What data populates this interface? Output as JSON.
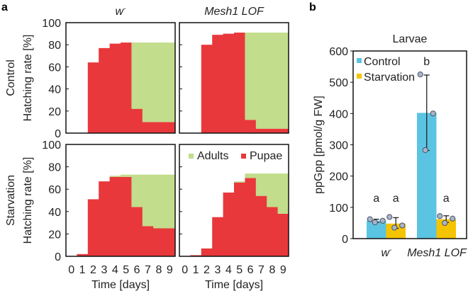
{
  "panel_labels": {
    "a": "a",
    "b": "b"
  },
  "colors": {
    "pupae": "#e8383b",
    "adults": "#c2dd8b",
    "control": "#5bc4e3",
    "starvation": "#f5c400",
    "point": "#a9b4c8"
  },
  "chart_data": [
    {
      "type": "bar",
      "subtype": "stacked-step",
      "panel": "a",
      "column_titles": [
        "w-",
        "Mesh1 LOF"
      ],
      "row_titles": [
        "Control",
        "Starvation"
      ],
      "ylabel": "Hatching rate [%]",
      "xlabel": "Time [days]",
      "ylim": [
        0,
        100
      ],
      "yticks": [
        0,
        20,
        40,
        60,
        80,
        100
      ],
      "categories": [
        "0",
        "1",
        "2",
        "3",
        "4",
        "5",
        "6",
        "7",
        "8",
        "9"
      ],
      "legend": {
        "position": "top-right",
        "entries": [
          "Adults",
          "Pupae"
        ]
      },
      "subplots": [
        {
          "row": "Control",
          "genotype": "w-",
          "series": [
            {
              "name": "Pupae",
              "values": [
                0,
                0,
                64,
                77,
                81,
                82,
                22,
                10,
                10,
                10
              ]
            },
            {
              "name": "Adults",
              "values": [
                0,
                0,
                0,
                0,
                0,
                0,
                60,
                72,
                72,
                72
              ]
            }
          ]
        },
        {
          "row": "Control",
          "genotype": "Mesh1 LOF",
          "series": [
            {
              "name": "Pupae",
              "values": [
                0,
                0,
                80,
                89,
                90,
                91,
                12,
                4,
                4,
                4
              ]
            },
            {
              "name": "Adults",
              "values": [
                0,
                0,
                0,
                0,
                0,
                0,
                79,
                87,
                87,
                87
              ]
            }
          ]
        },
        {
          "row": "Starvation",
          "genotype": "w-",
          "series": [
            {
              "name": "Pupae",
              "values": [
                0,
                2,
                51,
                67,
                71,
                71,
                44,
                27,
                25,
                25
              ]
            },
            {
              "name": "Adults",
              "values": [
                0,
                0,
                0,
                0,
                1,
                2,
                29,
                46,
                48,
                48
              ]
            }
          ]
        },
        {
          "row": "Starvation",
          "genotype": "Mesh1 LOF",
          "series": [
            {
              "name": "Pupae",
              "values": [
                0,
                1,
                7,
                35,
                57,
                66,
                70,
                54,
                44,
                38
              ]
            },
            {
              "name": "Adults",
              "values": [
                0,
                0,
                0,
                0,
                0,
                1,
                4,
                20,
                30,
                36
              ]
            }
          ]
        }
      ]
    },
    {
      "type": "bar",
      "panel": "b",
      "title": "Larvae",
      "ylabel": "ppGpp [pmol/g FW]",
      "ylim": [
        0,
        600
      ],
      "yticks": [
        0,
        100,
        200,
        300,
        400,
        500,
        600
      ],
      "categories": [
        "w-",
        "Mesh1 LOF"
      ],
      "legend": {
        "position": "top-left",
        "entries": [
          "Control",
          "Starvation"
        ]
      },
      "series": [
        {
          "name": "Control",
          "values": [
            57,
            402
          ],
          "error_low": [
            52,
            282
          ],
          "error_high": [
            62,
            523
          ],
          "points": [
            [
              62,
              52,
              57
            ],
            [
              525,
              283,
              400
            ]
          ],
          "letters": [
            "a",
            "b"
          ]
        },
        {
          "name": "Starvation",
          "values": [
            48,
            62
          ],
          "error_low": [
            33,
            52
          ],
          "error_high": [
            67,
            73
          ],
          "points": [
            [
              69,
              35,
              42
            ],
            [
              72,
              50,
              64
            ]
          ],
          "letters": [
            "a",
            "a"
          ]
        }
      ]
    }
  ]
}
